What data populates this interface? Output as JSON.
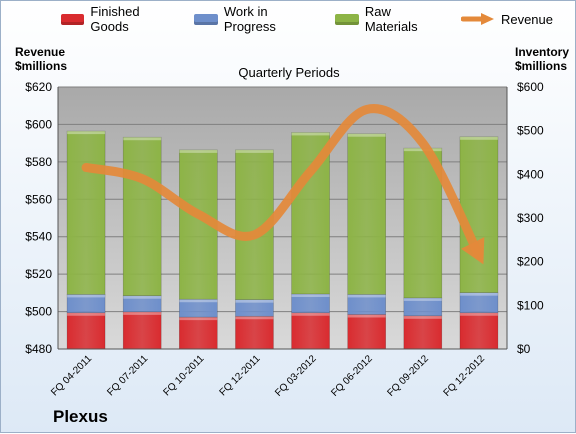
{
  "colors": {
    "finished": "#d92b2f",
    "wip": "#6e8fcb",
    "raw": "#8db446",
    "revenue": "#e4893a"
  },
  "company": "Plexus",
  "chart_data": {
    "type": "bar",
    "subtitle": "Quarterly Periods",
    "left_axis_title": [
      "Revenue",
      "$millions"
    ],
    "right_axis_title": [
      "Inventory",
      "$millions"
    ],
    "categories": [
      "FQ 04-2011",
      "FQ 07-2011",
      "FQ 10-2011",
      "FQ 12-2011",
      "FQ 03-2012",
      "FQ 06-2012",
      "FQ 09-2012",
      "FQ 12-2012"
    ],
    "left_axis": {
      "min": 480,
      "max": 620,
      "step": 20,
      "prefix": "$"
    },
    "right_axis": {
      "min": 0,
      "max": 600,
      "step": 100,
      "prefix": "$"
    },
    "series": [
      {
        "name": "Finished Goods",
        "axis": "right",
        "values": [
          83,
          85,
          73,
          75,
          83,
          79,
          76,
          83
        ]
      },
      {
        "name": "Work in Progress",
        "axis": "right",
        "values": [
          42,
          37,
          41,
          38,
          43,
          46,
          41,
          46
        ]
      },
      {
        "name": "Raw Materials",
        "axis": "right",
        "values": [
          374,
          363,
          342,
          343,
          370,
          368,
          343,
          357
        ]
      },
      {
        "name": "Revenue",
        "axis": "left",
        "type": "line",
        "values": [
          577,
          571,
          552,
          541,
          575,
          608,
          590,
          530
        ]
      }
    ],
    "grid": true,
    "legend": "top"
  }
}
